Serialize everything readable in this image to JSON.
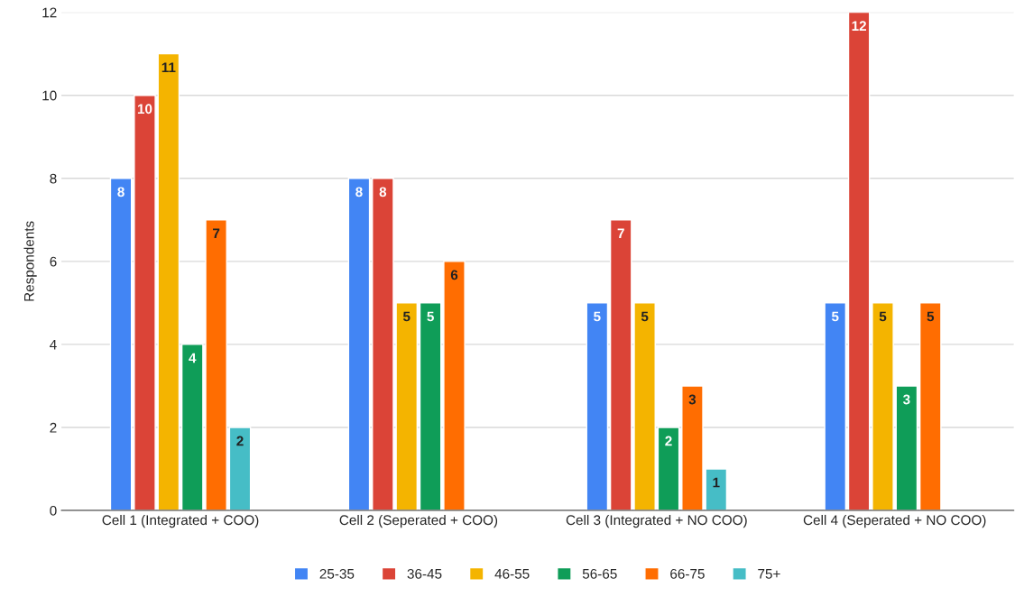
{
  "chart_data": {
    "type": "bar",
    "ylabel": "Respondents",
    "categories": [
      "Cell 1 (Integrated + COO)",
      "Cell 2 (Seperated + COO)",
      "Cell 3 (Integrated + NO COO)",
      "Cell 4 (Seperated + NO COO)"
    ],
    "series": [
      {
        "name": "25-35",
        "color": "#4285f4",
        "values": [
          8,
          8,
          5,
          5
        ]
      },
      {
        "name": "36-45",
        "color": "#db4437",
        "values": [
          10,
          8,
          7,
          12
        ]
      },
      {
        "name": "46-55",
        "color": "#f4b400",
        "values": [
          11,
          5,
          5,
          5
        ]
      },
      {
        "name": "56-65",
        "color": "#0f9d58",
        "values": [
          4,
          5,
          2,
          3
        ]
      },
      {
        "name": "66-75",
        "color": "#ff6d01",
        "values": [
          7,
          6,
          3,
          5
        ]
      },
      {
        "name": "75+",
        "color": "#46bdc6",
        "values": [
          2,
          null,
          1,
          null
        ]
      }
    ],
    "ylim": [
      0,
      12
    ],
    "yticks": [
      0,
      2,
      4,
      6,
      8,
      10,
      12
    ],
    "grid": "y",
    "legend": "bottom",
    "data_labels": true
  }
}
